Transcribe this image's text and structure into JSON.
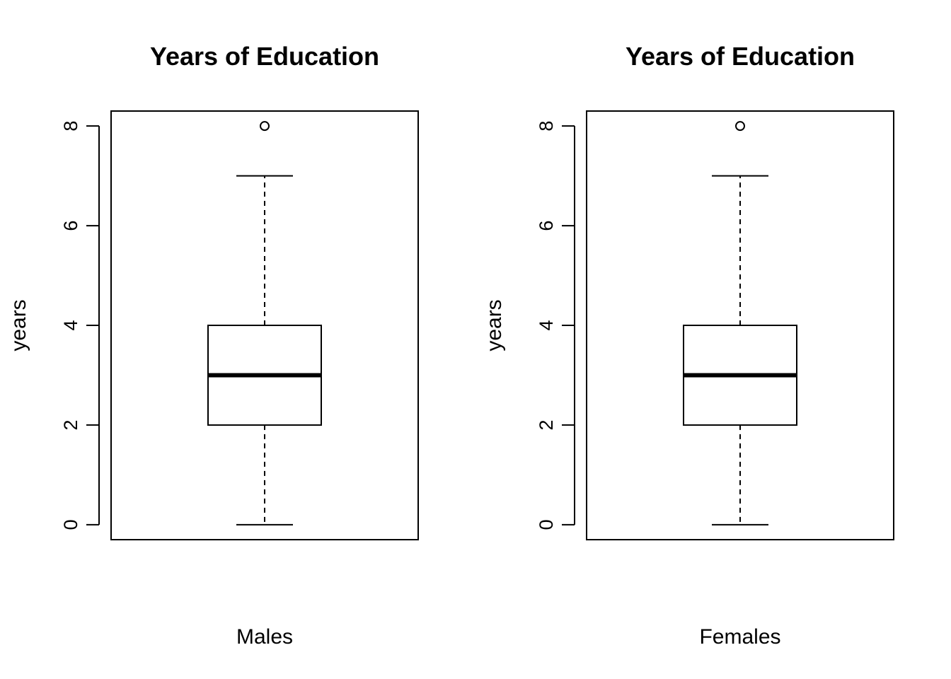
{
  "chart_data": [
    {
      "type": "box",
      "title": "Years of Education",
      "xlabel": "Males",
      "ylabel": "years",
      "ylim": [
        -0.3,
        8.3
      ],
      "yticks": [
        0,
        2,
        4,
        6,
        8
      ],
      "box": {
        "min": 0,
        "q1": 2,
        "median": 3,
        "q3": 4,
        "max": 7,
        "outliers": [
          8
        ]
      }
    },
    {
      "type": "box",
      "title": "Years of Education",
      "xlabel": "Females",
      "ylabel": "years",
      "ylim": [
        -0.3,
        8.3
      ],
      "yticks": [
        0,
        2,
        4,
        6,
        8
      ],
      "box": {
        "min": 0,
        "q1": 2,
        "median": 3,
        "q3": 4,
        "max": 7,
        "outliers": [
          8
        ]
      }
    }
  ]
}
